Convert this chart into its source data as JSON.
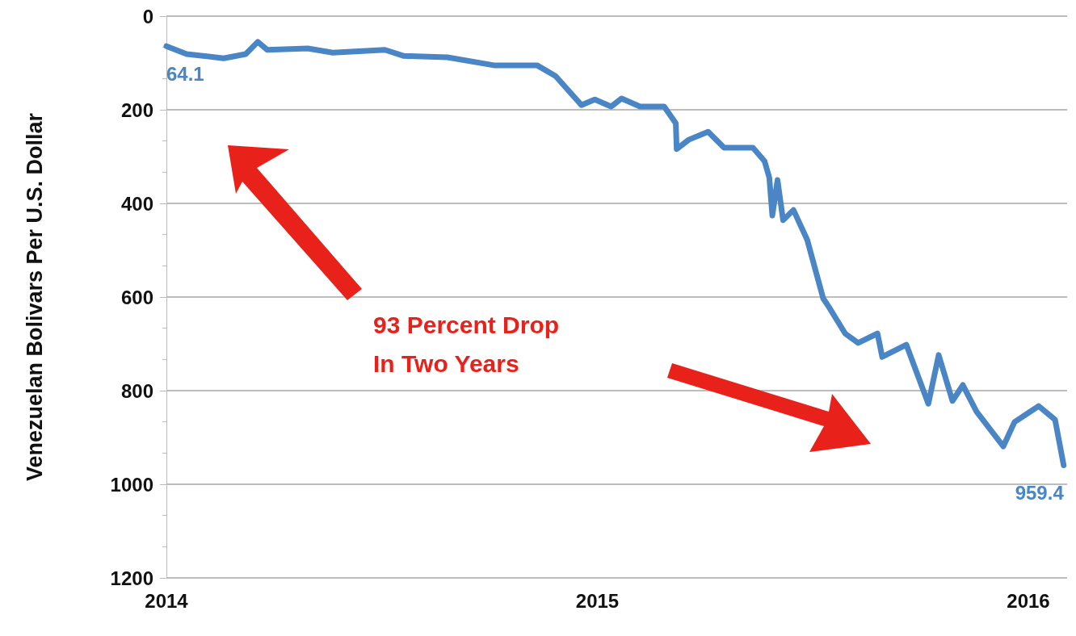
{
  "chart_data": {
    "type": "line",
    "ylabel": "Venezuelan Bolivars Per U.S. Dollar",
    "annotations": [
      "93 Percent Drop\nIn Two Years"
    ],
    "x": [
      2014.0,
      2014.047,
      2014.133,
      2014.184,
      2014.212,
      2014.234,
      2014.328,
      2014.386,
      2014.507,
      2014.551,
      2014.652,
      2014.76,
      2014.86,
      2014.903,
      2014.963,
      2014.994,
      2015.032,
      2015.056,
      2015.099,
      2015.155,
      2015.182,
      2015.184,
      2015.212,
      2015.257,
      2015.294,
      2015.361,
      2015.388,
      2015.399,
      2015.406,
      2015.418,
      2015.431,
      2015.455,
      2015.487,
      2015.524,
      2015.537,
      2015.575,
      2015.605,
      2015.65,
      2015.661,
      2015.717,
      2015.768,
      2015.792,
      2015.824,
      2015.848,
      2015.88,
      2015.942,
      2015.968,
      2016.024,
      2016.062,
      2016.082
    ],
    "series": [
      {
        "color": "#4a86c5",
        "values": [
          64.1,
          81,
          90,
          81,
          55,
          72,
          69,
          78,
          72,
          85,
          88,
          105,
          105,
          128,
          190,
          178,
          193,
          176,
          193,
          193,
          229,
          284,
          264,
          247,
          281,
          281,
          310,
          345,
          426,
          350,
          436,
          414,
          478,
          603,
          621,
          678,
          698,
          678,
          728,
          702,
          828,
          724,
          822,
          788,
          845,
          919,
          867,
          833,
          862,
          959.4
        ],
        "value_labels": [
          "64.1",
          null,
          null,
          null,
          null,
          null,
          null,
          null,
          null,
          null,
          null,
          null,
          null,
          null,
          null,
          null,
          null,
          null,
          null,
          null,
          null,
          null,
          null,
          null,
          null,
          null,
          null,
          null,
          null,
          null,
          null,
          null,
          null,
          null,
          null,
          null,
          null,
          null,
          null,
          null,
          null,
          null,
          null,
          null,
          null,
          null,
          null,
          null,
          null,
          "959.4"
        ]
      }
    ],
    "xlim": [
      2014,
      2016.09
    ],
    "xticks": [
      2014,
      2015,
      2016
    ],
    "ylim": [
      1200,
      0
    ],
    "yticks": [
      0,
      200,
      400,
      600,
      800,
      {
        "value": 1000,
        "label": "1000"
      },
      {
        "value": 1200,
        "label": "1200"
      }
    ],
    "grid": "y",
    "marker": "none",
    "line_style": "solid"
  }
}
